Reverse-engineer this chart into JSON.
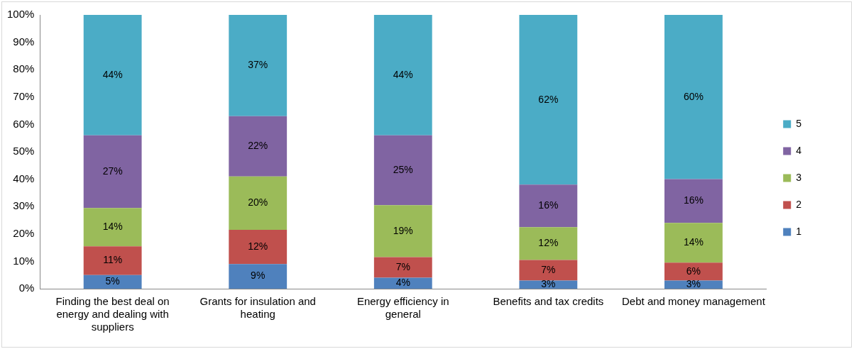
{
  "chart_data": {
    "type": "bar",
    "stacked": true,
    "categories": [
      "Finding the best deal on energy and dealing with suppliers",
      "Grants for insulation and heating",
      "Energy efficiency in general",
      "Benefits and tax credits",
      "Debt and money management"
    ],
    "series": [
      {
        "name": "1",
        "color": "#4f81bd",
        "values": [
          5,
          9,
          4,
          3,
          3
        ],
        "value_labels": [
          "5%",
          "9%",
          "4%",
          "3%",
          "3%"
        ]
      },
      {
        "name": "2",
        "color": "#c0504d",
        "values": [
          10.5,
          12.5,
          7.5,
          7.5,
          6.5
        ],
        "value_labels": [
          "11%",
          "12%",
          "7%",
          "7%",
          "6%"
        ]
      },
      {
        "name": "3",
        "color": "#9bbb59",
        "values": [
          14,
          19.5,
          19,
          12,
          14.5
        ],
        "value_labels": [
          "14%",
          "20%",
          "19%",
          "12%",
          "14%"
        ]
      },
      {
        "name": "4",
        "color": "#8064a2",
        "values": [
          26.5,
          22,
          25.5,
          15.5,
          16
        ],
        "value_labels": [
          "27%",
          "22%",
          "25%",
          "16%",
          "16%"
        ]
      },
      {
        "name": "5",
        "color": "#4bacc6",
        "values": [
          44,
          37,
          44,
          62,
          60
        ],
        "value_labels": [
          "44%",
          "37%",
          "44%",
          "62%",
          "60%"
        ]
      }
    ],
    "ylim": [
      0,
      100
    ],
    "yticks": [
      {
        "value": 0,
        "label": "0%"
      },
      {
        "value": 10,
        "label": "10%"
      },
      {
        "value": 20,
        "label": "20%"
      },
      {
        "value": 30,
        "label": "30%"
      },
      {
        "value": 40,
        "label": "40%"
      },
      {
        "value": 50,
        "label": "50%"
      },
      {
        "value": 60,
        "label": "60%"
      },
      {
        "value": 70,
        "label": "70%"
      },
      {
        "value": 80,
        "label": "80%"
      },
      {
        "value": 90,
        "label": "90%"
      },
      {
        "value": 100,
        "label": "100%"
      }
    ],
    "grid": false,
    "legend": "right"
  }
}
